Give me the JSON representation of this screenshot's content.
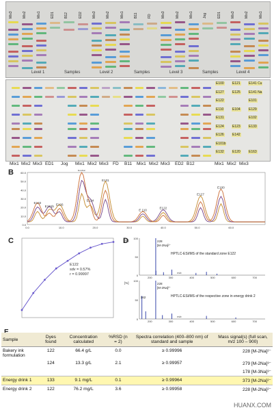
{
  "figure": {
    "panels": {
      "a": "A",
      "b": "B",
      "c": "C",
      "d": "D",
      "e": "E"
    },
    "plate_top_lanes": [
      "Mix3",
      "Mix2",
      "Mix1",
      "ED1",
      "B12",
      "ED2",
      "Mix3",
      "Mix2",
      "Mix1",
      "B11",
      "FD",
      "Mix3",
      "Mix2",
      "Mix1",
      "Jog",
      "ED1",
      "Mix3",
      "Mix2",
      "Mix1"
    ],
    "plate_bottom_lanes": [
      "Mix1",
      "Mix2",
      "Mix3",
      "ED1",
      "Jog",
      "Mix1",
      "Mix2",
      "Mix3",
      "FD",
      "B11",
      "Mix1",
      "Mix2",
      "Mix3",
      "ED2",
      "B12",
      "Mix1",
      "Mix2",
      "Mix3"
    ],
    "levels": [
      "Level 1",
      "Samples",
      "Level 2",
      "Samples",
      "Level 3",
      "Samples",
      "Level 4"
    ],
    "level4_labels": [
      {
        "c1": "E100",
        "c2": "E121",
        "c3": "E141 Cu"
      },
      {
        "c1": "E127",
        "c2": "E125",
        "c3": "E141 Na"
      },
      {
        "c1": "E122",
        "c2": "",
        "c3": "E101"
      },
      {
        "c1": "E110",
        "c2": "E104",
        "c3": "E129"
      },
      {
        "c1": "E131",
        "c2": "",
        "c3": "E102"
      },
      {
        "c1": "E124",
        "c2": "E123",
        "c3": "E133"
      },
      {
        "c1": "E126",
        "c2": "E142",
        "c3": ""
      },
      {
        "c1": "E101b",
        "c2": "",
        "c3": ""
      },
      {
        "c1": "E132",
        "c2": "E120",
        "c3": "E163"
      }
    ]
  },
  "chart_data": [
    {
      "type": "line",
      "panel": "B",
      "peak_labels": [
        "E132",
        "E101b",
        "E126",
        "E142",
        "E124",
        "E131",
        "E 110",
        "E122",
        "E127",
        "E100"
      ],
      "x": [
        0,
        10,
        20,
        30,
        40,
        50,
        60,
        70
      ],
      "xticks": [
        "0.0",
        "10.0",
        "20.0",
        "30.0",
        "40.0",
        "50.0",
        "60.0"
      ],
      "ylim": [
        0,
        60
      ],
      "yticks": [
        "0.0",
        "10.0",
        "20.0",
        "30.0",
        "40.0",
        "50.0",
        "60.0"
      ]
    },
    {
      "type": "line",
      "panel": "C",
      "annotation": {
        "dye": "E122",
        "sdv": "sdv = 0.57%",
        "r": "r = 0.99997"
      },
      "x": [
        0,
        100,
        200,
        300,
        400,
        500,
        600,
        700,
        800
      ],
      "y": [
        0.04,
        0.13,
        0.2,
        0.26,
        0.3,
        0.34,
        0.37,
        0.39,
        0.4
      ]
    },
    {
      "type": "bar",
      "panel": "D",
      "xlabel": "m/z",
      "spectra": [
        {
          "caption": "HPTLC-ESI/MS of the standard zone E122",
          "peak_label": "228",
          "peak_ion": "[M-2Na]²⁻",
          "unit": "[%]",
          "xticks": [
            "200",
            "300",
            "400",
            "500",
            "600",
            "700"
          ],
          "yticks": [
            "100",
            "50",
            "0"
          ],
          "peaks": [
            [
              228,
              100
            ],
            [
              229,
              12
            ],
            [
              265,
              8
            ],
            [
              305,
              15
            ],
            [
              420,
              6
            ],
            [
              470,
              9
            ],
            [
              520,
              4
            ]
          ]
        },
        {
          "caption": "HPTLC-ESI/MS of the respective zone in energy drink 2",
          "peak_label": "228",
          "peak_ion": "[M-2Na]²⁻",
          "peak2_label": "162",
          "unit": "[%]",
          "xticks": [
            "200",
            "300",
            "400",
            "500",
            "600",
            "700"
          ],
          "yticks": [
            "100",
            "50",
            "0"
          ],
          "peaks": [
            [
              162,
              60
            ],
            [
              180,
              20
            ],
            [
              228,
              100
            ],
            [
              260,
              10
            ],
            [
              305,
              14
            ],
            [
              470,
              8
            ],
            [
              610,
              4
            ]
          ]
        }
      ]
    }
  ],
  "table": {
    "headers": [
      "Sample",
      "Dyes found",
      "Concentration calculated",
      "%RSD (n = 2)",
      "Spectra correlation (400–800 nm) of standard and sample",
      "Mass signal(s) (full scan, m/z 100 – 900)"
    ],
    "rows": [
      {
        "sample": "Bakery ink formulation",
        "dyes": "122",
        "conc": "66.4 g/L",
        "rsd": "0.0",
        "corr": "≥ 0.99996",
        "mass": "228 [M-2Na]²⁻",
        "style": "sep"
      },
      {
        "sample": "",
        "dyes": "124",
        "conc": "13.3 g/L",
        "rsd": "2.1",
        "corr": "≥ 0.99957",
        "mass": "279 [M-2Na]³⁻",
        "style": ""
      },
      {
        "sample": "",
        "dyes": "",
        "conc": "",
        "rsd": "",
        "corr": "",
        "mass": "178 [M-3Na]³⁻",
        "style": ""
      },
      {
        "sample": "Energy drink 1",
        "dyes": "133",
        "conc": "9.1 mg/L",
        "rsd": "0.1",
        "corr": "≥ 0.99964",
        "mass": "373 [M-2Na]²⁻",
        "style": "hl"
      },
      {
        "sample": "Energy drink 2",
        "dyes": "122",
        "conc": "76.2 mg/L",
        "rsd": "3.6",
        "corr": "≥ 0.99958",
        "mass": "228 [M-2Na]²⁻",
        "style": ""
      }
    ]
  },
  "watermark": "HUANX.COM",
  "colors": {
    "plate": "#d9d9d6",
    "header": "#f0ead3",
    "highlight": "#fff7b0",
    "curve": "#6a5acd"
  }
}
